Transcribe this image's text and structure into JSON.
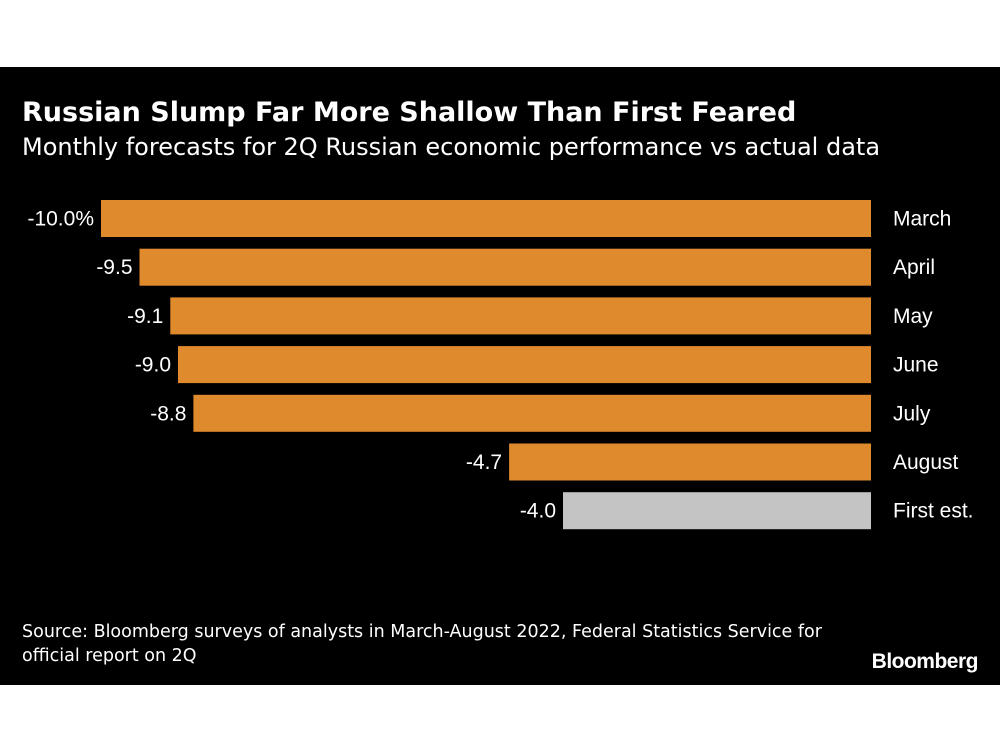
{
  "header": {
    "title": "Russian Slump Far More Shallow Than First Feared",
    "subtitle": "Monthly forecasts for 2Q Russian economic performance vs actual data"
  },
  "chart_data": {
    "type": "bar",
    "orientation": "horizontal",
    "title": "Russian Slump Far More Shallow Than First Feared",
    "subtitle": "Monthly forecasts for 2Q Russian economic performance vs actual data",
    "xlabel": "",
    "ylabel": "",
    "unit": "%",
    "categories": [
      "March",
      "April",
      "May",
      "June",
      "July",
      "August",
      "First est."
    ],
    "values": [
      -10.0,
      -9.5,
      -9.1,
      -9.0,
      -8.8,
      -4.7,
      -4.0
    ],
    "value_labels": [
      "-10.0%",
      "-9.5",
      "-9.1",
      "-9.0",
      "-8.8",
      "-4.7",
      "-4.0"
    ],
    "series_kind": [
      "forecast",
      "forecast",
      "forecast",
      "forecast",
      "forecast",
      "forecast",
      "actual"
    ],
    "colors": {
      "forecast": "#e08a2e",
      "actual": "#c4c4c4"
    },
    "xlim": [
      -10.0,
      0
    ],
    "grid": false,
    "legend": "none"
  },
  "footer": {
    "source": "Source: Bloomberg surveys of analysts in March-August 2022, Federal Statistics Service for official report on 2Q",
    "brand": "Bloomberg"
  }
}
